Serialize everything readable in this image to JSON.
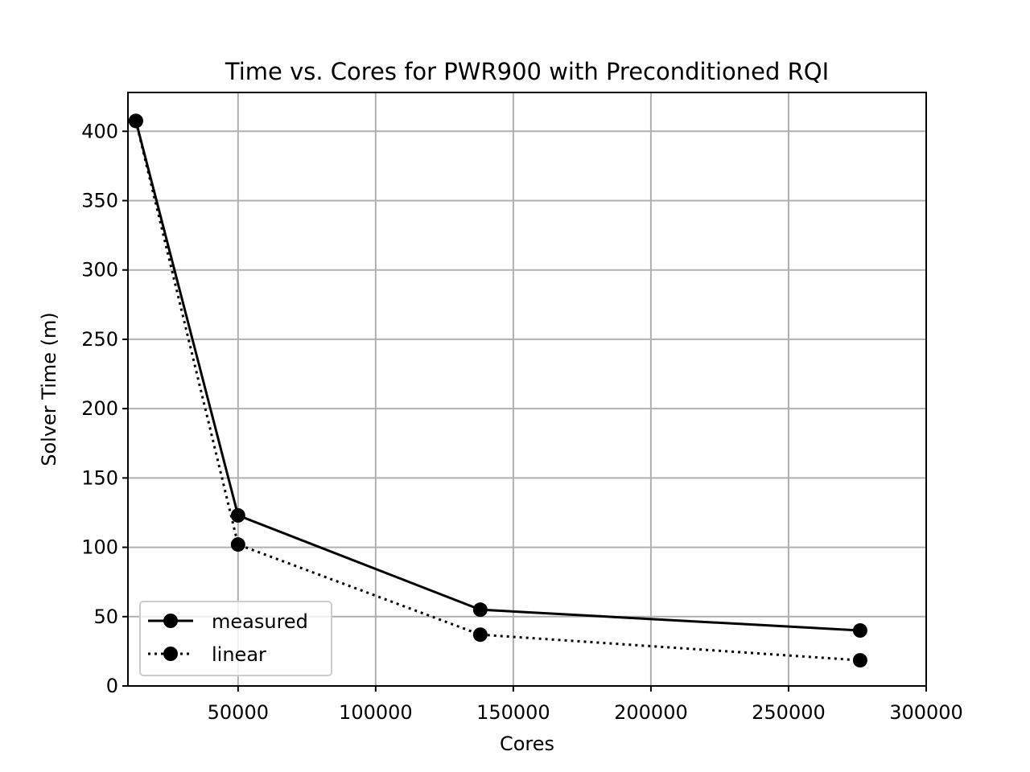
{
  "chart_data": {
    "type": "line",
    "title": "Time vs. Cores for PWR900 with Preconditioned RQI",
    "xlabel": "Cores",
    "ylabel": "Solver Time (m)",
    "xlim": [
      10000,
      300000
    ],
    "ylim": [
      0,
      428
    ],
    "xticks": [
      50000,
      100000,
      150000,
      200000,
      250000,
      300000
    ],
    "yticks": [
      0,
      50,
      100,
      150,
      200,
      250,
      300,
      350,
      400
    ],
    "grid": true,
    "legend_position": "lower-left",
    "series": [
      {
        "name": "measured",
        "style": "solid",
        "color": "#000000",
        "x": [
          12880,
          50000,
          138000,
          276000
        ],
        "y": [
          407.5,
          123,
          55,
          40
        ]
      },
      {
        "name": "linear",
        "style": "dotted",
        "color": "#000000",
        "x": [
          12880,
          50000,
          138000,
          276000
        ],
        "y": [
          407.5,
          102,
          37,
          18.5
        ]
      }
    ]
  }
}
